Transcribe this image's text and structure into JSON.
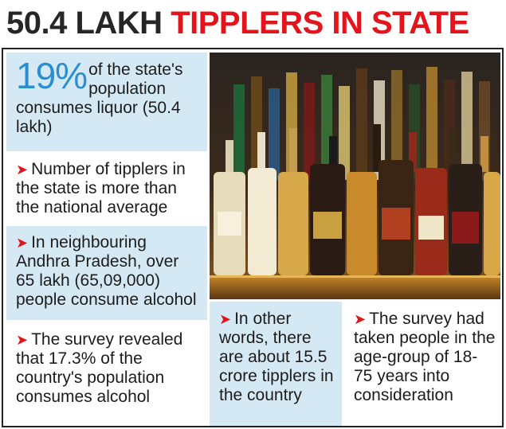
{
  "headline": {
    "part1": "50.4 LAKH",
    "part2": "TIPPLERS IN STATE",
    "colors": {
      "dark": "#262626",
      "red": "#e3141b"
    }
  },
  "facts": {
    "stat": {
      "number": "19%",
      "text": "of the state's population consumes liquor (50.4 lakh)"
    },
    "items": [
      {
        "text": "Number of tipplers in the state is more than the national average"
      },
      {
        "text": "In neighbouring Andhra Pradesh, over 65 lakh (65,09,000) people consume alcohol"
      },
      {
        "text": "The survey revealed that 17.3% of the country's population consumes alcohol"
      },
      {
        "text": "In other words, there are about 15.5 crore tipplers in the country"
      },
      {
        "text": "The survey had taken people in the age-group of 18-75 years into consideration"
      }
    ],
    "bullet_icon": "arrow-bullet-icon",
    "colors": {
      "panel_blue": "#d5e9f5",
      "stat_blue": "#2a8fd0",
      "arrow_red": "#e3141b"
    }
  }
}
